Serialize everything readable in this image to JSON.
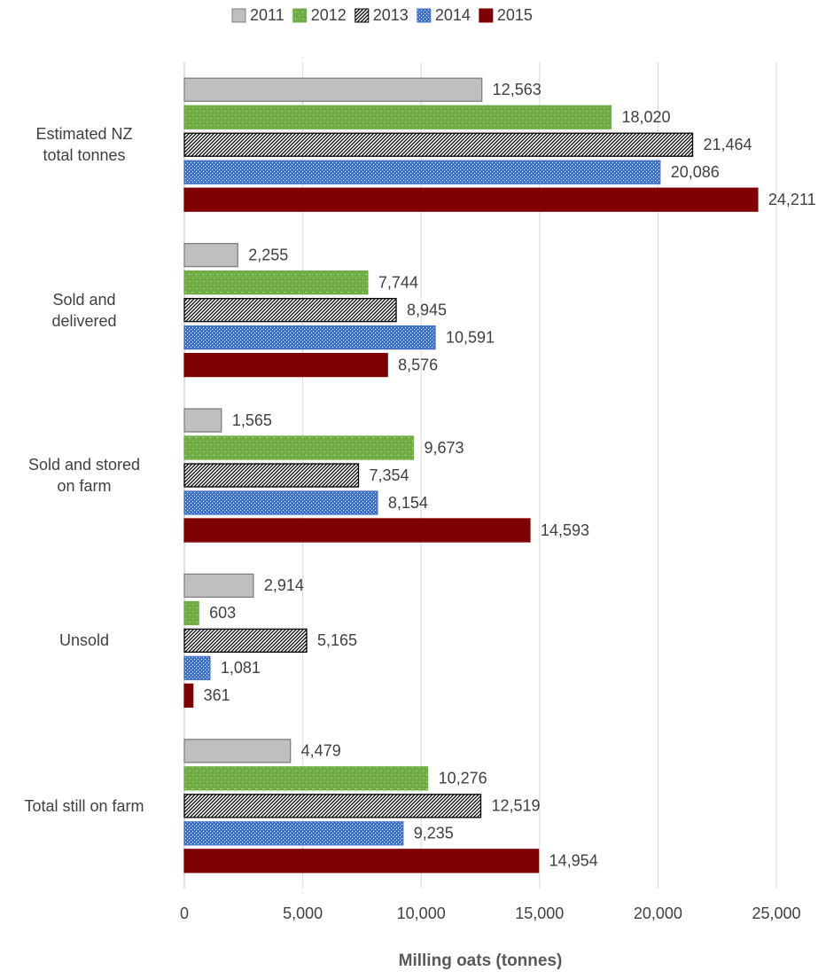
{
  "chart_data": {
    "type": "hbar",
    "xlabel": "Milling oats (tonnes)",
    "categories": [
      "Estimated NZ\ntotal tonnes",
      "Sold and\ndelivered",
      "Sold and stored\non farm",
      "Unsold",
      "Total still on farm"
    ],
    "series": [
      {
        "name": "2011",
        "color": "#bfbfbf",
        "stroke": "#7f7f7f",
        "pattern": "solid",
        "values": [
          12563,
          2255,
          1565,
          2914,
          4479
        ],
        "value_labels": [
          "12,563",
          "2,255",
          "1,565",
          "2,914",
          "4,479"
        ]
      },
      {
        "name": "2012",
        "color": "#70ad47",
        "stroke": "#70ad47",
        "pattern": "dots",
        "values": [
          18020,
          7744,
          9673,
          603,
          10276
        ],
        "value_labels": [
          "18,020",
          "7,744",
          "9,673",
          "603",
          "10,276"
        ]
      },
      {
        "name": "2013",
        "color": "#ffffff",
        "stroke": "#000000",
        "pattern": "hatch",
        "values": [
          21464,
          8945,
          7354,
          5165,
          12519
        ],
        "value_labels": [
          "21,464",
          "8,945",
          "7,354",
          "5,165",
          "12,519"
        ]
      },
      {
        "name": "2014",
        "color": "#4472c4",
        "stroke": "#4472c4",
        "pattern": "dense-dots",
        "values": [
          20086,
          10591,
          8154,
          1081,
          9235
        ],
        "value_labels": [
          "20,086",
          "10,591",
          "8,154",
          "1,081",
          "9,235"
        ]
      },
      {
        "name": "2015",
        "color": "#7f0000",
        "stroke": "#7f0000",
        "pattern": "solid",
        "values": [
          24211,
          8576,
          14593,
          361,
          14954
        ],
        "value_labels": [
          "24,211",
          "8,576",
          "14,593",
          "361",
          "14,954"
        ]
      }
    ],
    "xlim": [
      0,
      25000
    ],
    "xticks": [
      0,
      {
        "value": 5000,
        "label": "5,000"
      },
      {
        "value": 10000,
        "label": "10,000"
      },
      {
        "value": 15000,
        "label": "15,000"
      },
      {
        "value": 20000,
        "label": "20,000"
      },
      {
        "value": 25000,
        "label": "25,000"
      }
    ],
    "grid": true,
    "legend": "top"
  }
}
